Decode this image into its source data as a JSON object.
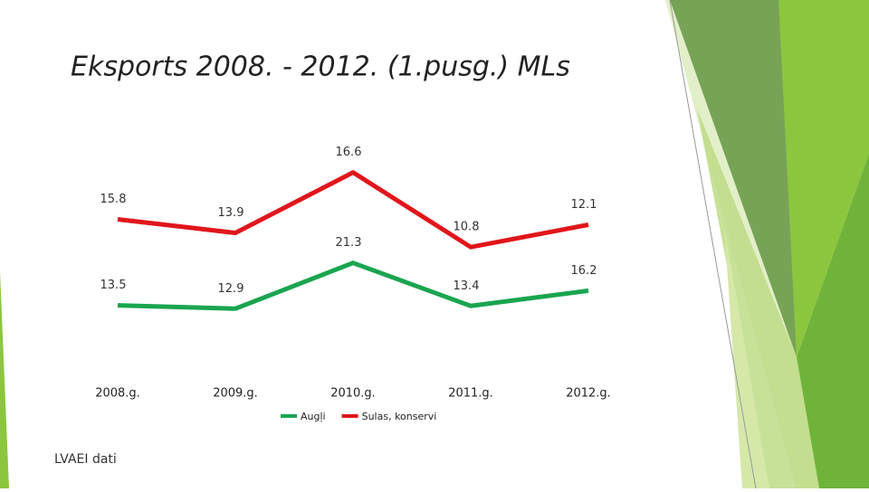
{
  "chart_data": {
    "type": "line",
    "stacked": true,
    "title": "Eksports 2008. - 2012. (1.pusg.) MLs",
    "source": "LVAEI dati",
    "categories": [
      "2008.g.",
      "2009.g.",
      "2010.g.",
      "2011.g.",
      "2012.g."
    ],
    "series": [
      {
        "name": "Augļi",
        "color": "#1aa550",
        "values": [
          13.5,
          12.9,
          21.3,
          13.4,
          16.2
        ]
      },
      {
        "name": "Sulas, konservi",
        "color": "#e0161b",
        "values": [
          15.8,
          13.9,
          16.6,
          10.8,
          12.1
        ]
      }
    ],
    "ylim": [
      0,
      40
    ],
    "legend": "bottom"
  }
}
